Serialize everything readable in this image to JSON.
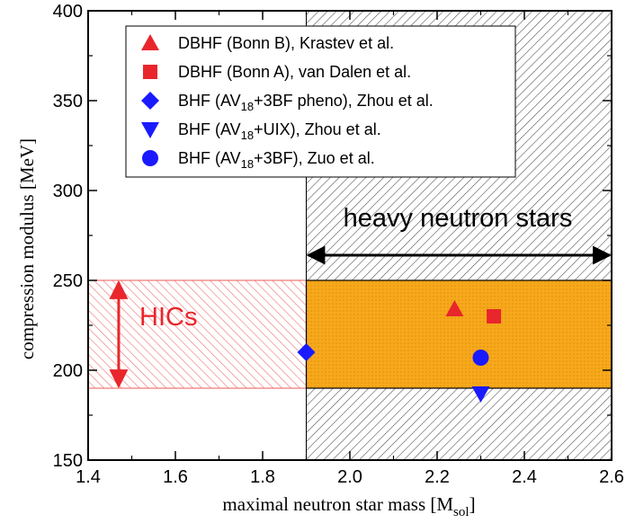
{
  "chart_data": {
    "type": "scatter",
    "xlabel": "maximal neutron star mass [M",
    "xlabel_sub": "sol",
    "xlabel_close": "]",
    "ylabel": "compression modulus  [MeV]",
    "xlim": [
      1.4,
      2.6
    ],
    "ylim": [
      150,
      400
    ],
    "xticks": [
      "1.4",
      "1.6",
      "1.8",
      "2.0",
      "2.2",
      "2.4",
      "2.6"
    ],
    "yticks": [
      "150",
      "200",
      "250",
      "300",
      "350",
      "400"
    ],
    "grid": false,
    "legend_position": "top-right",
    "regions": [
      {
        "label": "heavy neutron stars",
        "x": [
          1.9,
          2.6
        ],
        "y": [
          150,
          400
        ],
        "pattern": "grey-hatch"
      },
      {
        "label": "HICs",
        "x": [
          1.4,
          1.9
        ],
        "y": [
          190,
          250
        ],
        "pattern": "red-hatch"
      },
      {
        "label": "",
        "x": [
          1.9,
          2.6
        ],
        "y": [
          190,
          250
        ],
        "pattern": "orange-dots",
        "color": "#f7a81b"
      }
    ],
    "arrows": [
      {
        "x": [
          1.9,
          2.6
        ],
        "y": 264,
        "color": "#000000",
        "label": "heavy neutron stars"
      },
      {
        "x": 1.47,
        "y": [
          190,
          250
        ],
        "color": "#e8262b",
        "label": "HICs"
      }
    ],
    "series": [
      {
        "name": "DBHF (Bonn B), Krastev et al.",
        "marker": "triangle-up",
        "color": "#e8262b",
        "points": [
          [
            2.24,
            234
          ]
        ]
      },
      {
        "name": "DBHF (Bonn A), van Dalen et al.",
        "marker": "square",
        "color": "#e8262b",
        "points": [
          [
            2.33,
            230
          ]
        ]
      },
      {
        "name": "BHF (AV18+3BF pheno), Zhou et al.",
        "marker": "diamond",
        "color": "#1a1aff",
        "points": [
          [
            1.9,
            210
          ]
        ]
      },
      {
        "name": "BHF (AV18+UIX), Zhou et al.",
        "marker": "triangle-down",
        "color": "#1a1aff",
        "points": [
          [
            2.3,
            187
          ]
        ]
      },
      {
        "name": "BHF (AV18+3BF), Zuo et al.",
        "marker": "circle",
        "color": "#1a1aff",
        "points": [
          [
            2.3,
            207
          ]
        ]
      }
    ],
    "legend": [
      {
        "pre": "DBHF (Bonn B), Krastev et al.",
        "sub": "",
        "post": ""
      },
      {
        "pre": "DBHF (Bonn A), van Dalen et al.",
        "sub": "",
        "post": ""
      },
      {
        "pre": "BHF (AV",
        "sub": "18",
        "post": "+3BF pheno), Zhou et al."
      },
      {
        "pre": "BHF (AV",
        "sub": "18",
        "post": "+UIX), Zhou et al."
      },
      {
        "pre": "BHF (AV",
        "sub": "18",
        "post": "+3BF), Zuo et al."
      }
    ]
  }
}
